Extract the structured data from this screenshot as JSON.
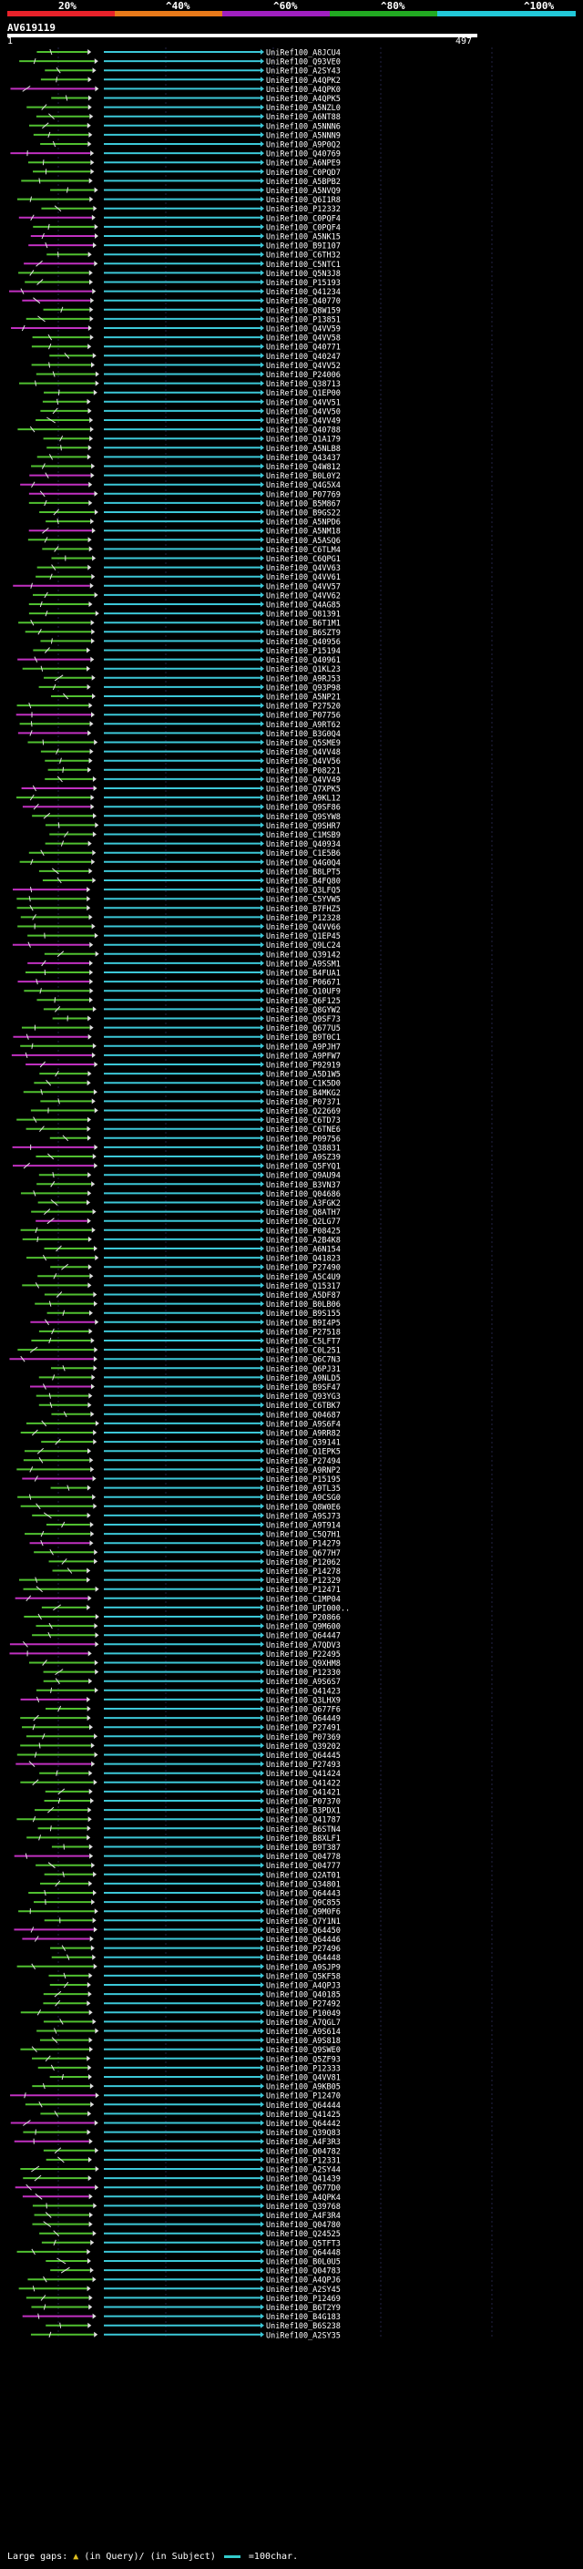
{
  "legend": {
    "labels": [
      "20%",
      "^40%",
      "^60%",
      "^80%",
      "^100%"
    ],
    "colors": [
      "#e8222a",
      "#e87a1a",
      "#a020c0",
      "#22aa22",
      "#22c8d8"
    ]
  },
  "query": {
    "name": "AV619119",
    "start": "1",
    "end": "497"
  },
  "hits": [
    "UniRef100_A8JCU4",
    "UniRef100_Q93VE0",
    "UniRef100_A2SY43",
    "UniRef100_A4QPK2",
    "UniRef100_A4QPK0",
    "UniRef100_A4QPK5",
    "UniRef100_A5NZL0",
    "UniRef100_A6NT88",
    "UniRef100_A5NNN6",
    "UniRef100_A5NNN9",
    "UniRef100_A9P0Q2",
    "UniRef100_Q40769",
    "UniRef100_A6NPE9",
    "UniRef100_C0PQD7",
    "UniRef100_A5BPB2",
    "UniRef100_A5NVQ9",
    "UniRef100_Q6I1R8",
    "UniRef100_P12332",
    "UniRef100_C0PQF4",
    "UniRef100_C0PQF4",
    "UniRef100_A5NK15",
    "UniRef100_B9I107",
    "UniRef100_C6TH32",
    "UniRef100_C5NTC1",
    "UniRef100_Q5N3J8",
    "UniRef100_P15193",
    "UniRef100_Q41234",
    "UniRef100_Q40770",
    "UniRef100_Q8W159",
    "UniRef100_P13851",
    "UniRef100_Q4VV59",
    "UniRef100_Q4VV58",
    "UniRef100_Q40771",
    "UniRef100_Q40247",
    "UniRef100_Q4VV52",
    "UniRef100_P24006",
    "UniRef100_Q38713",
    "UniRef100_Q1EP00",
    "UniRef100_Q4VV51",
    "UniRef100_Q4VV50",
    "UniRef100_Q4VV49",
    "UniRef100_Q40788",
    "UniRef100_Q1A179",
    "UniRef100_A5NLB8",
    "UniRef100_Q43437",
    "UniRef100_Q4W812",
    "UniRef100_B0L0Y2",
    "UniRef100_Q4G5X4",
    "UniRef100_P07769",
    "UniRef100_B5M867",
    "UniRef100_B9GS22",
    "UniRef100_A5NPD6",
    "UniRef100_A5NM18",
    "UniRef100_A5ASQ6",
    "UniRef100_C6TLM4",
    "UniRef100_C6QPG1",
    "UniRef100_Q4VV63",
    "UniRef100_Q4VV61",
    "UniRef100_Q4VV57",
    "UniRef100_Q4VV62",
    "UniRef100_Q4AG85",
    "UniRef100_O81391",
    "UniRef100_B6T1M1",
    "UniRef100_B6SZT9",
    "UniRef100_Q40956",
    "UniRef100_P15194",
    "UniRef100_Q40961",
    "UniRef100_Q1KL23",
    "UniRef100_A9RJ53",
    "UniRef100_Q93P98",
    "UniRef100_A5NP21",
    "UniRef100_P27520",
    "UniRef100_P07756",
    "UniRef100_A9RT62",
    "UniRef100_B3G0Q4",
    "UniRef100_Q5SME9",
    "UniRef100_Q4VV48",
    "UniRef100_Q4VV56",
    "UniRef100_P08221",
    "UniRef100_Q4VV49",
    "UniRef100_Q7XPK5",
    "UniRef100_A9KL12",
    "UniRef100_Q9SF86",
    "UniRef100_Q9SYW8",
    "UniRef100_Q9SHR7",
    "UniRef100_C1MSB9",
    "UniRef100_Q40934",
    "UniRef100_C1E5B6",
    "UniRef100_Q4G0Q4",
    "UniRef100_B8LPT5",
    "UniRef100_B4FQ80",
    "UniRef100_Q3LFQ5",
    "UniRef100_C5YVW5",
    "UniRef100_B7FHZ5",
    "UniRef100_P12328",
    "UniRef100_Q4VV66",
    "UniRef100_Q1EP45",
    "UniRef100_Q9LC24",
    "UniRef100_Q39142",
    "UniRef100_A9SSM1",
    "UniRef100_B4FUA1",
    "UniRef100_P06671",
    "UniRef100_Q10UF9",
    "UniRef100_Q6F125",
    "UniRef100_Q8GYW2",
    "UniRef100_Q9SF73",
    "UniRef100_Q677U5",
    "UniRef100_B9T0C1",
    "UniRef100_A9PJH7",
    "UniRef100_A9PFW7",
    "UniRef100_P92919",
    "UniRef100_A5D1W5",
    "UniRef100_C1K5D0",
    "UniRef100_B4MKG2",
    "UniRef100_P07371",
    "UniRef100_Q22669",
    "UniRef100_C6TD73",
    "UniRef100_C6TNE6",
    "UniRef100_P09756",
    "UniRef100_Q38831",
    "UniRef100_A9SZ39",
    "UniRef100_Q5FYQ1",
    "UniRef100_Q9AU94",
    "UniRef100_B3VN37",
    "UniRef100_Q04686",
    "UniRef100_A3FGK2",
    "UniRef100_Q8ATH7",
    "UniRef100_Q2LG77",
    "UniRef100_P08425",
    "UniRef100_A2B4K8",
    "UniRef100_A6N154",
    "UniRef100_Q41823",
    "UniRef100_P27490",
    "UniRef100_A5C4U9",
    "UniRef100_Q15317",
    "UniRef100_A5DF87",
    "UniRef100_B0LB06",
    "UniRef100_B9S155",
    "UniRef100_B9I4P5",
    "UniRef100_P27518",
    "UniRef100_C5LFT7",
    "UniRef100_C0L251",
    "UniRef100_Q6C7N3",
    "UniRef100_Q6PJ31",
    "UniRef100_A9NLD5",
    "UniRef100_B9SF47",
    "UniRef100_Q93YG3",
    "UniRef100_C6TBK7",
    "UniRef100_Q04687",
    "UniRef100_A9S6F4",
    "UniRef100_A9RR82",
    "UniRef100_Q39141",
    "UniRef100_Q1EPK5",
    "UniRef100_P27494",
    "UniRef100_A9RNP2",
    "UniRef100_P15195",
    "UniRef100_A9TL35",
    "UniRef100_A9CSG0",
    "UniRef100_Q8W0E6",
    "UniRef100_A9SJ73",
    "UniRef100_A9T914",
    "UniRef100_C5Q7H1",
    "UniRef100_P14279",
    "UniRef100_Q677H7",
    "UniRef100_P12062",
    "UniRef100_P14278",
    "UniRef100_P12329",
    "UniRef100_P12471",
    "UniRef100_C1MP04",
    "UniRef100_UPI000..",
    "UniRef100_P20866",
    "UniRef100_Q9M600",
    "UniRef100_Q64447",
    "UniRef100_A7QDV3",
    "UniRef100_P22495",
    "UniRef100_Q9XHM8",
    "UniRef100_P12330",
    "UniRef100_A9S6S7",
    "UniRef100_Q41423",
    "UniRef100_Q3LHX9",
    "UniRef100_Q677F6",
    "UniRef100_Q64449",
    "UniRef100_P27491",
    "UniRef100_P07369",
    "UniRef100_Q39202",
    "UniRef100_Q64445",
    "UniRef100_P27493",
    "UniRef100_Q41424",
    "UniRef100_Q41422",
    "UniRef100_Q41421",
    "UniRef100_P07370",
    "UniRef100_B3PDX1",
    "UniRef100_Q41787",
    "UniRef100_B6STN4",
    "UniRef100_B8XLF1",
    "UniRef100_B9T387",
    "UniRef100_Q04778",
    "UniRef100_Q04777",
    "UniRef100_Q2AT01",
    "UniRef100_Q34801",
    "UniRef100_Q64443",
    "UniRef100_Q9C855",
    "UniRef100_Q9M0F6",
    "UniRef100_Q7Y1N1",
    "UniRef100_Q64450",
    "UniRef100_Q64446",
    "UniRef100_P27496",
    "UniRef100_Q64448",
    "UniRef100_A9SJP9",
    "UniRef100_Q5KF58",
    "UniRef100_A4QPJ3",
    "UniRef100_Q40185",
    "UniRef100_P27492",
    "UniRef100_P10049",
    "UniRef100_A7QGL7",
    "UniRef100_A9S614",
    "UniRef100_A9S818",
    "UniRef100_Q9SWE0",
    "UniRef100_Q5ZF93",
    "UniRef100_P12333",
    "UniRef100_Q4VV81",
    "UniRef100_A9KB05",
    "UniRef100_P12470",
    "UniRef100_Q64444",
    "UniRef100_Q41425",
    "UniRef100_Q64442",
    "UniRef100_Q39Q83",
    "UniRef100_A4F3R3",
    "UniRef100_Q04782",
    "UniRef100_P12331",
    "UniRef100_A2SY44",
    "UniRef100_Q41439",
    "UniRef100_Q677D0",
    "UniRef100_A4QPK4",
    "UniRef100_Q39768",
    "UniRef100_A4F3R4",
    "UniRef100_Q04780",
    "UniRef100_Q24525",
    "UniRef100_Q5TFT3",
    "UniRef100_Q64448",
    "UniRef100_B0L0U5",
    "UniRef100_Q04783",
    "UniRef100_A4QPJ6",
    "UniRef100_A2SY45",
    "UniRef100_P12469",
    "UniRef100_B6T2Y9",
    "UniRef100_B4G183",
    "UniRef100_B6S238",
    "UniRef100_A2SY35"
  ],
  "footer": {
    "large_gaps": "Large gaps:",
    "in_query": "(in Query)",
    "in_subject": "(in Subject)",
    "scale": "=100char."
  }
}
